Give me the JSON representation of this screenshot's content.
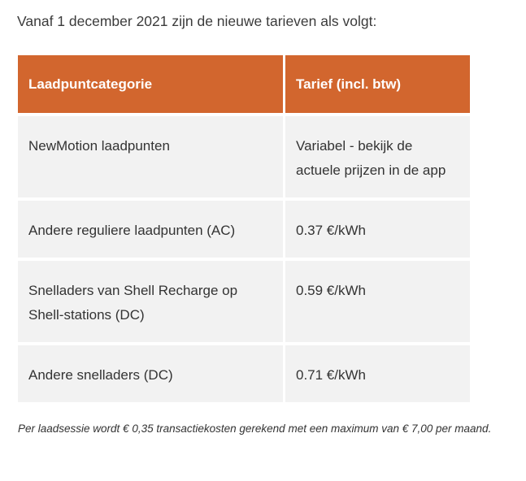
{
  "intro": "Vanaf 1 december 2021 zijn de nieuwe tarieven als volgt:",
  "table": {
    "headers": [
      "Laadpuntcategorie",
      "Tarief (incl. btw)"
    ],
    "rows": [
      {
        "category": "NewMotion laadpunten",
        "tariff": "Variabel - bekijk de actuele prijzen in de app"
      },
      {
        "category": "Andere reguliere laadpunten (AC)",
        "tariff": "0.37 €/kWh"
      },
      {
        "category": "Snelladers van Shell Recharge op Shell-stations (DC)",
        "tariff": "0.59 €/kWh"
      },
      {
        "category": "Andere snelladers (DC)",
        "tariff": "0.71 €/kWh"
      }
    ]
  },
  "footnote": "Per laadsessie wordt € 0,35 transactiekosten gerekend met een maximum van € 7,00 per maand.",
  "colors": {
    "header_bg": "#D2662E",
    "header_text": "#FFFFFF",
    "row_bg": "#F2F2F2",
    "body_text": "#333333"
  }
}
